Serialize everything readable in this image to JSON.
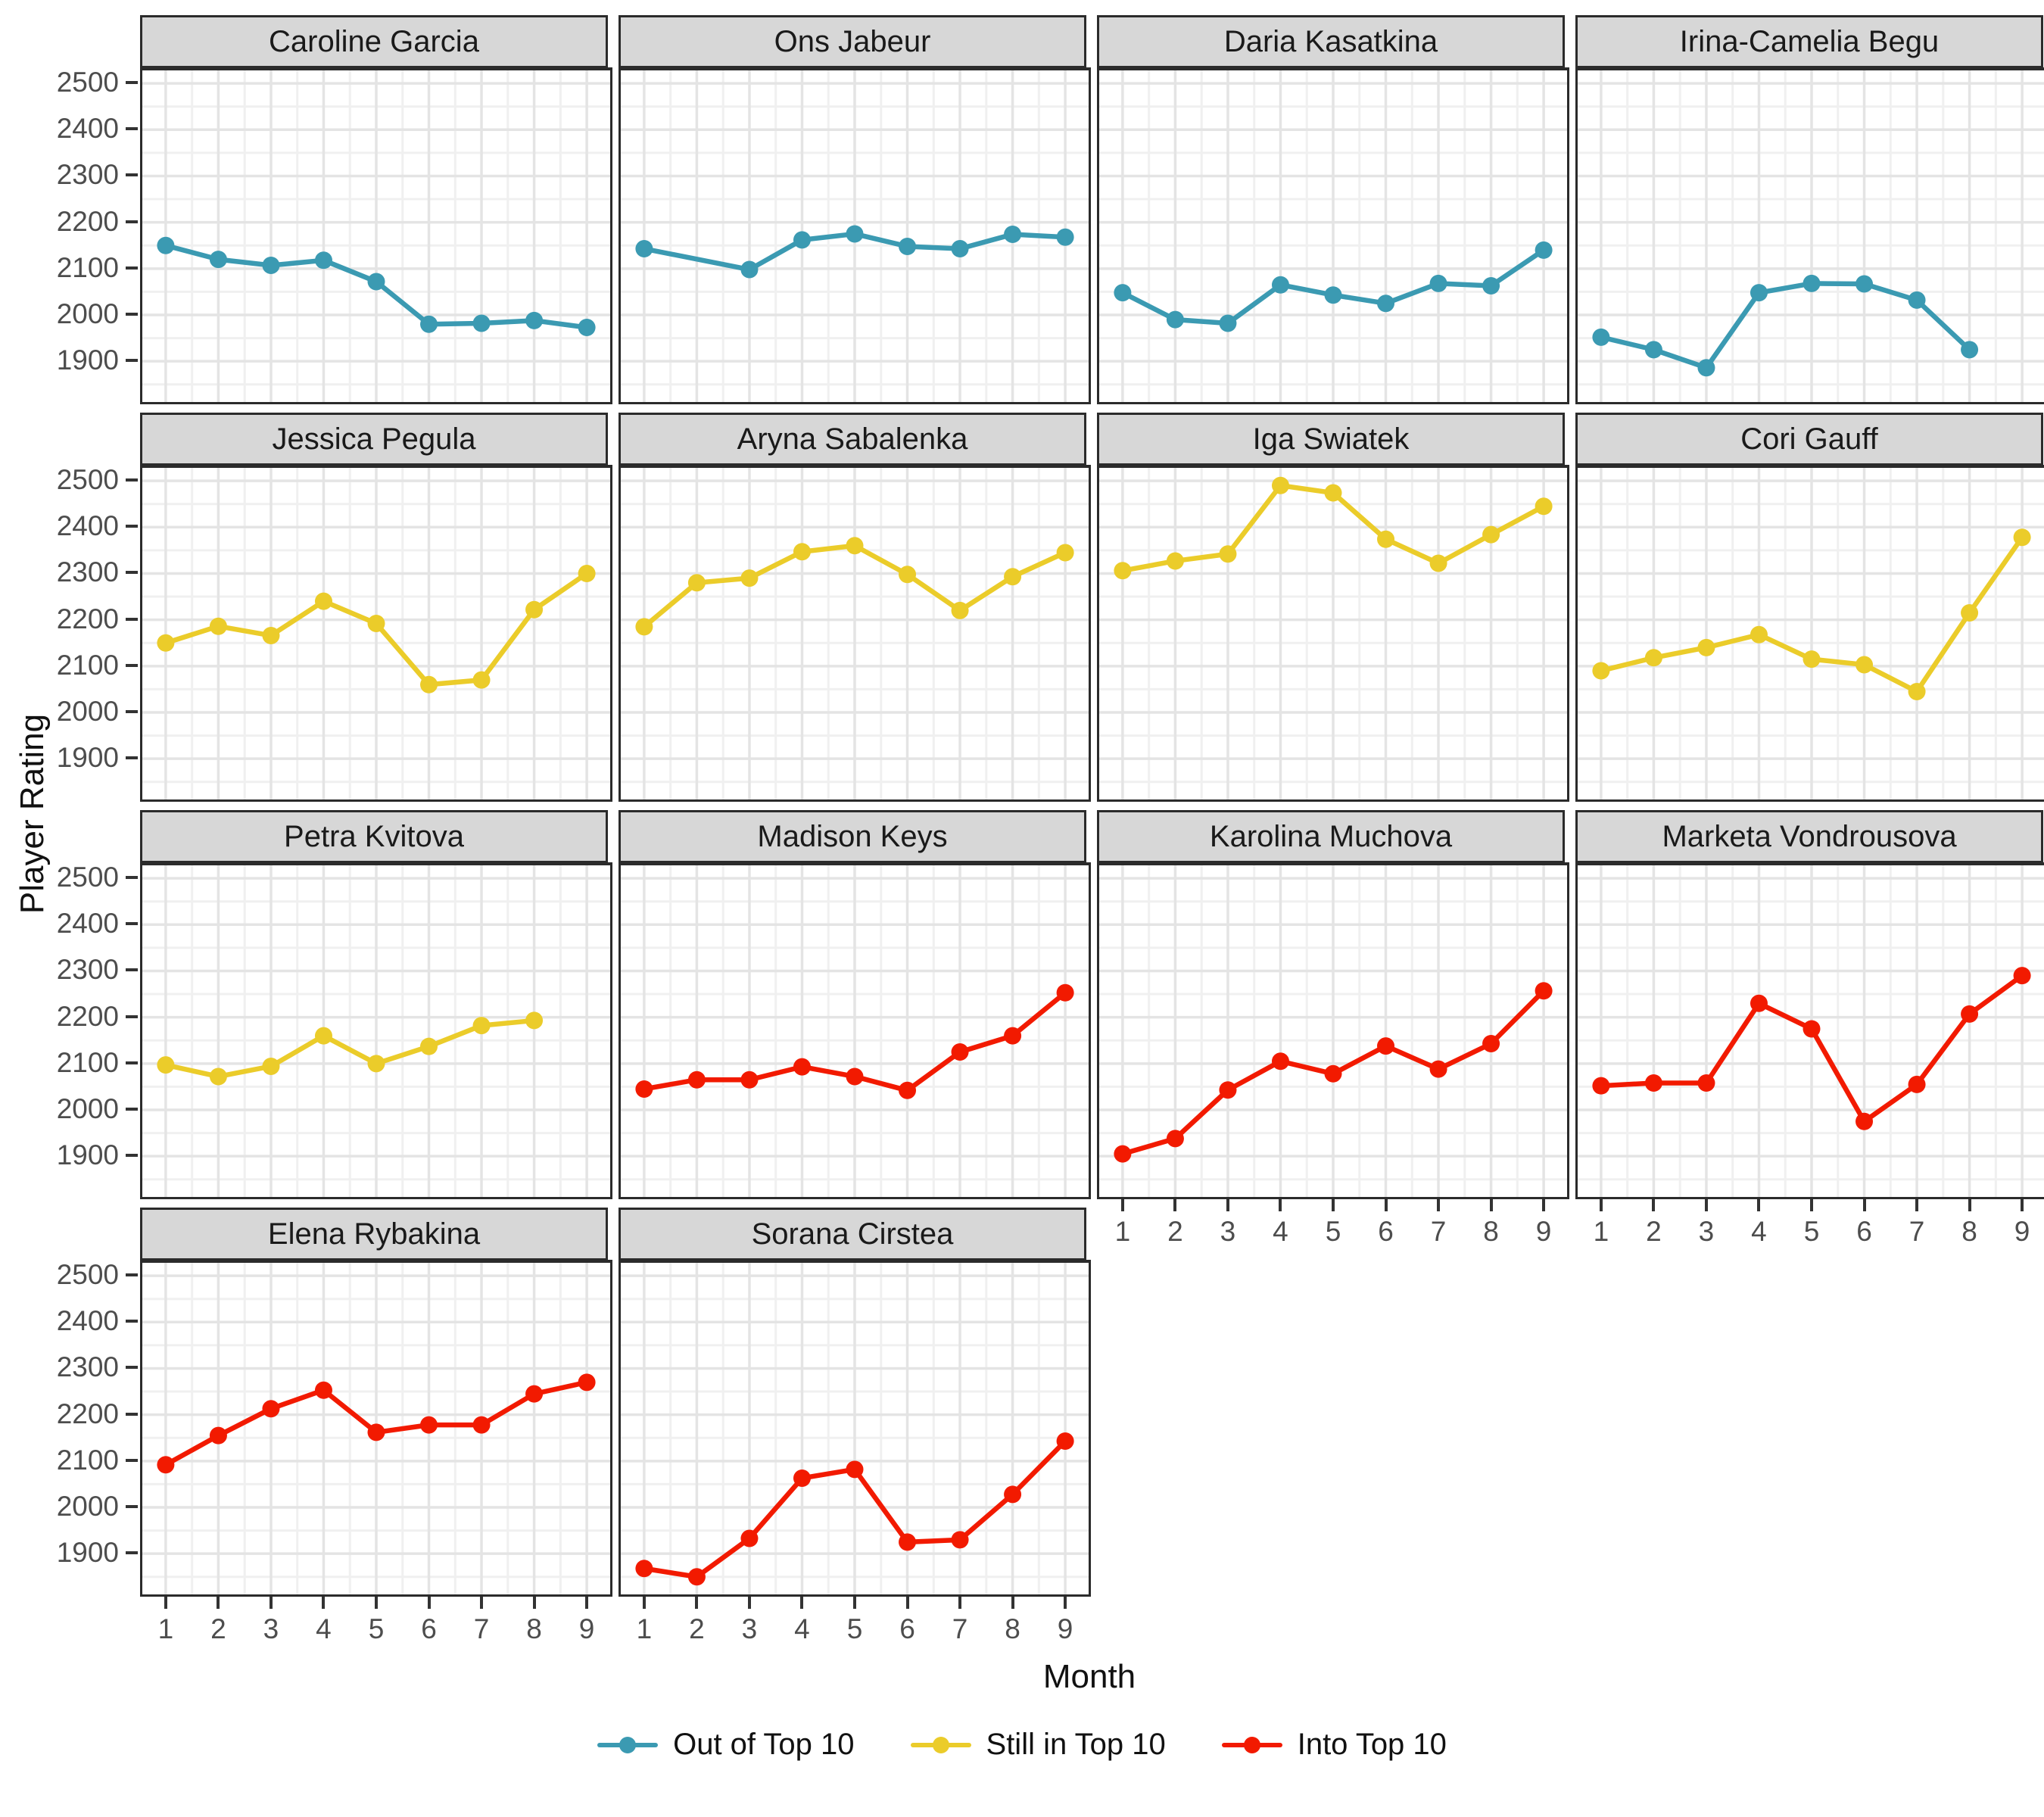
{
  "chart_data": {
    "type": "line",
    "title": "",
    "xlabel": "Month",
    "ylabel": "Player Rating",
    "x_values": [
      1,
      2,
      3,
      4,
      5,
      6,
      7,
      8,
      9
    ],
    "x_tick_labels": [
      "1",
      "2",
      "3",
      "4",
      "5",
      "6",
      "7",
      "8",
      "9"
    ],
    "y_ticks": [
      1900,
      2000,
      2100,
      2200,
      2300,
      2400,
      2500
    ],
    "y_minor_ticks": [
      1850,
      1950,
      2050,
      2150,
      2250,
      2350,
      2450
    ],
    "ylim": [
      1812,
      2528
    ],
    "grid": "major and minor, light gray on white",
    "legend_position": "bottom",
    "groups": [
      {
        "name": "Out of Top 10",
        "color": "#3B9AB2"
      },
      {
        "name": "Still in Top 10",
        "color": "#EBCC2A"
      },
      {
        "name": "Into Top 10",
        "color": "#F21A00"
      }
    ],
    "facets": [
      {
        "player": "Caroline Garcia",
        "group": "Out of Top 10",
        "ratings": [
          2150,
          2120,
          2107,
          2118,
          2072,
          1980,
          1982,
          1988,
          1973
        ]
      },
      {
        "player": "Ons Jabeur",
        "group": "Out of Top 10",
        "ratings": [
          2143,
          null,
          2098,
          2162,
          2175,
          2148,
          2143,
          2174,
          2168
        ]
      },
      {
        "player": "Daria Kasatkina",
        "group": "Out of Top 10",
        "ratings": [
          2048,
          1990,
          1982,
          2065,
          2043,
          2025,
          2068,
          2063,
          2140
        ]
      },
      {
        "player": "Irina-Camelia Begu",
        "group": "Out of Top 10",
        "ratings": [
          1952,
          1925,
          1886,
          2048,
          2068,
          2067,
          2032,
          1925,
          null
        ]
      },
      {
        "player": "Jessica Pegula",
        "group": "Still in Top 10",
        "ratings": [
          2150,
          2186,
          2166,
          2240,
          2192,
          2060,
          2070,
          2222,
          2300
        ]
      },
      {
        "player": "Aryna Sabalenka",
        "group": "Still in Top 10",
        "ratings": [
          2185,
          2280,
          2290,
          2347,
          2360,
          2298,
          2220,
          2293,
          2345
        ]
      },
      {
        "player": "Iga Swiatek",
        "group": "Still in Top 10",
        "ratings": [
          2306,
          2327,
          2342,
          2490,
          2474,
          2374,
          2322,
          2384,
          2445
        ]
      },
      {
        "player": "Cori Gauff",
        "group": "Still in Top 10",
        "ratings": [
          2090,
          2118,
          2140,
          2168,
          2115,
          2103,
          2045,
          2215,
          2378
        ]
      },
      {
        "player": "Petra Kvitova",
        "group": "Still in Top 10",
        "ratings": [
          2097,
          2072,
          2094,
          2160,
          2100,
          2137,
          2182,
          2193,
          null
        ]
      },
      {
        "player": "Madison Keys",
        "group": "Into Top 10",
        "ratings": [
          2045,
          2065,
          2065,
          2093,
          2072,
          2042,
          2125,
          2160,
          2253
        ]
      },
      {
        "player": "Karolina Muchova",
        "group": "Into Top 10",
        "ratings": [
          1905,
          1938,
          2043,
          2105,
          2078,
          2138,
          2088,
          2143,
          2257
        ]
      },
      {
        "player": "Marketa Vondrousova",
        "group": "Into Top 10",
        "ratings": [
          2052,
          2058,
          2058,
          2230,
          2175,
          1975,
          2055,
          2207,
          2290
        ]
      },
      {
        "player": "Elena Rybakina",
        "group": "Into Top 10",
        "ratings": [
          2092,
          2155,
          2213,
          2253,
          2162,
          2178,
          2178,
          2245,
          2270
        ]
      },
      {
        "player": "Sorana Cirstea",
        "group": "Into Top 10",
        "ratings": [
          1868,
          1850,
          1933,
          2063,
          2082,
          1925,
          1930,
          2028,
          2143
        ]
      }
    ]
  }
}
